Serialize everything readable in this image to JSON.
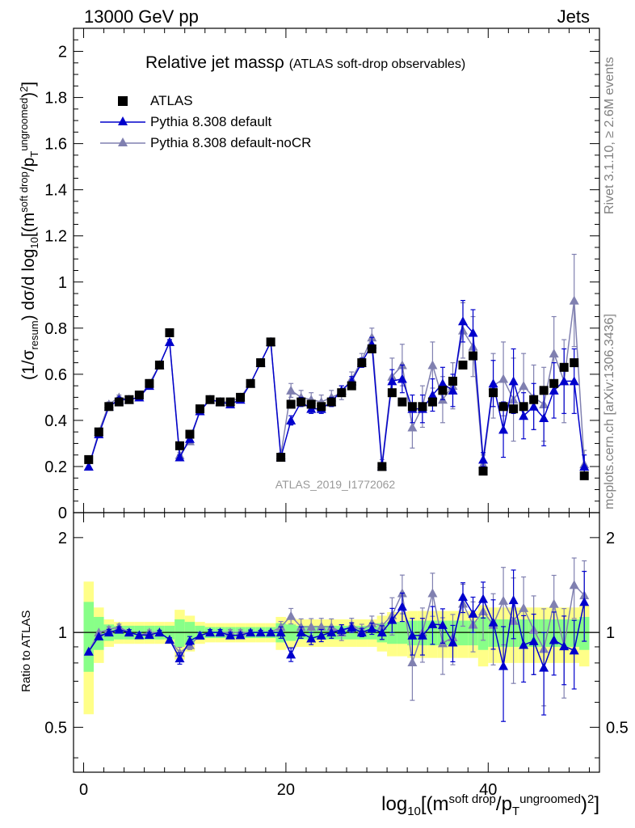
{
  "header": {
    "energy_label": "13000 GeV pp",
    "process_label": "Jets"
  },
  "side_labels": {
    "rivet": "Rivet 3.1.10, ≥ 2.6M events",
    "mcplots": "mcplots.cern.ch [arXiv:1306.3436]"
  },
  "title": {
    "main": "Relative jet massρ",
    "sub": "(ATLAS soft-drop observables)"
  },
  "analysis_tag": "ATLAS_2019_I1772062",
  "axis_labels": {
    "y_main": "(1/σresum) dσ/d log10[(msoft drop/pTungroomed)2]",
    "y_ratio": "Ratio to ATLAS",
    "x": "log10[(msoft drop/pTungroomed)2]"
  },
  "legend": [
    {
      "name": "ATLAS",
      "color": "#000000",
      "marker": "square"
    },
    {
      "name": "Pythia 8.308 default",
      "color": "#0000cc",
      "marker": "triangle"
    },
    {
      "name": "Pythia 8.308 default-noCR",
      "color": "#8080b0",
      "marker": "triangle"
    }
  ],
  "chart_data": {
    "type": "line",
    "xlim": [
      -1,
      51
    ],
    "main_panel": {
      "ylim": [
        0,
        2.1
      ],
      "yticks": [
        0,
        0.2,
        0.4,
        0.6,
        0.8,
        1,
        1.2,
        1.4,
        1.6,
        1.8,
        2
      ],
      "ytick_labels": [
        "0",
        "0.2",
        "0.4",
        "0.6",
        "0.8",
        "1",
        "1.2",
        "1.4",
        "1.6",
        "1.8",
        "2"
      ]
    },
    "ratio_panel": {
      "ylim": [
        0.36,
        2.4
      ],
      "scale": "log",
      "yticks": [
        0.5,
        1,
        2
      ],
      "ytick_labels": [
        "0.5",
        "1",
        "2"
      ]
    },
    "xticks": [
      0,
      20,
      40
    ],
    "xtick_labels": [
      "0",
      "20",
      "40"
    ],
    "x": [
      0.5,
      1.5,
      2.5,
      3.5,
      4.5,
      5.5,
      6.5,
      7.5,
      8.5,
      9.5,
      10.5,
      11.5,
      12.5,
      13.5,
      14.5,
      15.5,
      16.5,
      17.5,
      18.5,
      19.5,
      20.5,
      21.5,
      22.5,
      23.5,
      24.5,
      25.5,
      26.5,
      27.5,
      28.5,
      29.5,
      30.5,
      31.5,
      32.5,
      33.5,
      34.5,
      35.5,
      36.5,
      37.5,
      38.5,
      39.5,
      40.5,
      41.5,
      42.5,
      43.5,
      44.5,
      45.5,
      46.5,
      47.5,
      48.5,
      49.5
    ],
    "series": [
      {
        "name": "ATLAS",
        "color": "#000000",
        "marker": "square",
        "values": [
          0.23,
          0.35,
          0.46,
          0.48,
          0.49,
          0.51,
          0.56,
          0.64,
          0.78,
          0.29,
          0.34,
          0.45,
          0.49,
          0.48,
          0.48,
          0.5,
          0.56,
          0.65,
          0.74,
          0.24,
          0.47,
          0.48,
          0.47,
          0.46,
          0.48,
          0.52,
          0.55,
          0.65,
          0.71,
          0.2,
          0.52,
          0.48,
          0.46,
          0.46,
          0.48,
          0.53,
          0.57,
          0.64,
          0.68,
          0.18,
          0.52,
          0.46,
          0.45,
          0.46,
          0.49,
          0.53,
          0.56,
          0.63,
          0.65,
          0.16
        ],
        "uncertainty_rel_1sigma": [
          0.25,
          0.12,
          0.06,
          0.05,
          0.05,
          0.05,
          0.05,
          0.05,
          0.05,
          0.1,
          0.08,
          0.05,
          0.04,
          0.04,
          0.04,
          0.04,
          0.04,
          0.04,
          0.04,
          0.07,
          0.06,
          0.05,
          0.05,
          0.05,
          0.05,
          0.05,
          0.05,
          0.05,
          0.05,
          0.07,
          0.08,
          0.08,
          0.09,
          0.09,
          0.09,
          0.09,
          0.09,
          0.09,
          0.09,
          0.12,
          0.1,
          0.1,
          0.1,
          0.1,
          0.1,
          0.1,
          0.1,
          0.1,
          0.1,
          0.12
        ],
        "uncertainty_rel_2sigma": [
          0.45,
          0.2,
          0.1,
          0.08,
          0.08,
          0.08,
          0.08,
          0.08,
          0.08,
          0.18,
          0.13,
          0.08,
          0.07,
          0.07,
          0.07,
          0.07,
          0.07,
          0.07,
          0.07,
          0.12,
          0.11,
          0.1,
          0.1,
          0.1,
          0.1,
          0.1,
          0.1,
          0.1,
          0.1,
          0.13,
          0.16,
          0.16,
          0.17,
          0.17,
          0.17,
          0.17,
          0.17,
          0.17,
          0.17,
          0.22,
          0.2,
          0.2,
          0.2,
          0.2,
          0.2,
          0.2,
          0.2,
          0.2,
          0.2,
          0.22
        ]
      },
      {
        "name": "Pythia 8.308 default",
        "color": "#0000cc",
        "marker": "triangle",
        "values": [
          0.2,
          0.34,
          0.46,
          0.49,
          0.49,
          0.5,
          0.55,
          0.64,
          0.74,
          0.24,
          0.32,
          0.44,
          0.49,
          0.48,
          0.47,
          0.49,
          0.56,
          0.65,
          0.74,
          0.24,
          0.4,
          0.48,
          0.45,
          0.45,
          0.48,
          0.53,
          0.57,
          0.65,
          0.73,
          0.2,
          0.57,
          0.58,
          0.45,
          0.45,
          0.51,
          0.56,
          0.53,
          0.83,
          0.78,
          0.23,
          0.56,
          0.36,
          0.57,
          0.42,
          0.46,
          0.41,
          0.53,
          0.57,
          0.57,
          0.2
        ],
        "errors": [
          0.005,
          0.008,
          0.01,
          0.01,
          0.01,
          0.01,
          0.01,
          0.01,
          0.01,
          0.01,
          0.01,
          0.01,
          0.01,
          0.01,
          0.01,
          0.01,
          0.01,
          0.01,
          0.01,
          0.01,
          0.02,
          0.02,
          0.02,
          0.02,
          0.02,
          0.02,
          0.02,
          0.02,
          0.03,
          0.01,
          0.05,
          0.06,
          0.06,
          0.06,
          0.07,
          0.07,
          0.07,
          0.09,
          0.1,
          0.03,
          0.1,
          0.12,
          0.14,
          0.1,
          0.1,
          0.12,
          0.12,
          0.14,
          0.14,
          0.05
        ]
      },
      {
        "name": "Pythia 8.308 default-noCR",
        "color": "#8080b0",
        "marker": "triangle",
        "values": [
          0.2,
          0.35,
          0.47,
          0.5,
          0.49,
          0.5,
          0.56,
          0.64,
          0.74,
          0.25,
          0.31,
          0.44,
          0.49,
          0.48,
          0.48,
          0.5,
          0.56,
          0.65,
          0.74,
          0.25,
          0.53,
          0.5,
          0.49,
          0.48,
          0.5,
          0.52,
          0.58,
          0.66,
          0.76,
          0.21,
          0.59,
          0.64,
          0.37,
          0.46,
          0.64,
          0.49,
          0.55,
          0.79,
          0.72,
          0.21,
          0.55,
          0.58,
          0.49,
          0.55,
          0.5,
          0.47,
          0.69,
          0.57,
          0.92,
          0.21
        ],
        "errors": [
          0.005,
          0.008,
          0.01,
          0.01,
          0.01,
          0.01,
          0.01,
          0.01,
          0.01,
          0.01,
          0.01,
          0.01,
          0.01,
          0.01,
          0.01,
          0.01,
          0.01,
          0.01,
          0.01,
          0.01,
          0.03,
          0.03,
          0.03,
          0.03,
          0.03,
          0.03,
          0.03,
          0.03,
          0.04,
          0.02,
          0.08,
          0.09,
          0.09,
          0.09,
          0.1,
          0.1,
          0.1,
          0.12,
          0.13,
          0.04,
          0.14,
          0.16,
          0.18,
          0.14,
          0.14,
          0.16,
          0.16,
          0.18,
          0.2,
          0.06
        ]
      }
    ]
  }
}
